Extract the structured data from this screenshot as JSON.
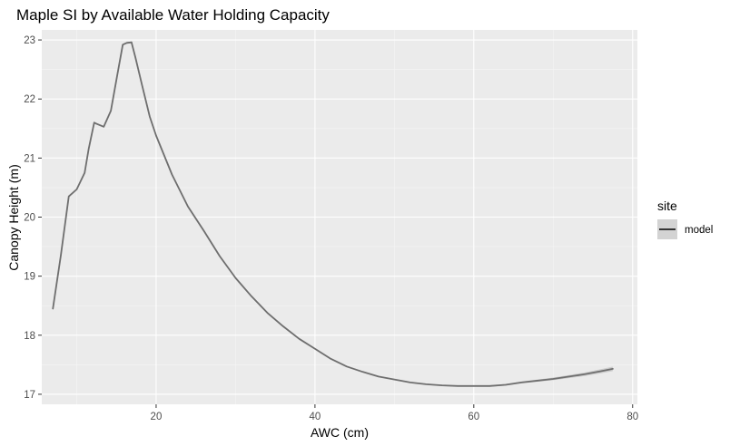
{
  "chart_data": {
    "type": "line",
    "title": "Maple SI by Available Water Holding Capacity",
    "xlabel": "AWC (cm)",
    "ylabel": "Canopy Height (m)",
    "xlim": [
      5.6,
      80.6
    ],
    "ylim": [
      16.83,
      23.17
    ],
    "x_ticks": [
      20,
      40,
      60,
      80
    ],
    "y_ticks": [
      17,
      18,
      19,
      20,
      21,
      22,
      23
    ],
    "grid": true,
    "background": "#EBEBEB",
    "grid_color": "#FFFFFF",
    "legend": {
      "title": "site",
      "placement": "right",
      "entries": [
        "model"
      ]
    },
    "series": [
      {
        "name": "model",
        "color": "#6E6E6E",
        "ribbon_color": "#C8C8C8",
        "x": [
          7,
          8,
          9,
          10,
          11,
          11.5,
          12.2,
          12.5,
          13.4,
          14.3,
          15.1,
          15.8,
          16.3,
          16.9,
          17.4,
          18.2,
          19.2,
          20,
          22,
          24,
          26,
          28,
          30,
          32,
          34,
          36,
          38,
          40,
          42,
          44,
          46,
          48,
          50,
          52,
          54,
          56,
          58,
          60,
          62,
          64,
          66,
          68,
          70,
          72,
          74,
          76,
          77.5
        ],
        "y": [
          18.45,
          19.35,
          20.35,
          20.47,
          20.75,
          21.15,
          21.6,
          21.58,
          21.53,
          21.8,
          22.4,
          22.92,
          22.95,
          22.96,
          22.7,
          22.25,
          21.7,
          21.38,
          20.72,
          20.18,
          19.77,
          19.34,
          18.97,
          18.66,
          18.38,
          18.15,
          17.94,
          17.77,
          17.6,
          17.47,
          17.38,
          17.3,
          17.25,
          17.2,
          17.17,
          17.15,
          17.14,
          17.14,
          17.14,
          17.16,
          17.2,
          17.23,
          17.26,
          17.3,
          17.34,
          17.39,
          17.43
        ],
        "ribbon_halfwidth": [
          0.012,
          0.012,
          0.012,
          0.012,
          0.012,
          0.012,
          0.012,
          0.012,
          0.012,
          0.012,
          0.012,
          0.012,
          0.012,
          0.012,
          0.012,
          0.012,
          0.012,
          0.012,
          0.01,
          0.01,
          0.009,
          0.009,
          0.008,
          0.008,
          0.008,
          0.008,
          0.008,
          0.008,
          0.008,
          0.008,
          0.008,
          0.008,
          0.008,
          0.008,
          0.009,
          0.009,
          0.01,
          0.011,
          0.012,
          0.014,
          0.016,
          0.019,
          0.022,
          0.026,
          0.03,
          0.034,
          0.038
        ]
      }
    ]
  }
}
